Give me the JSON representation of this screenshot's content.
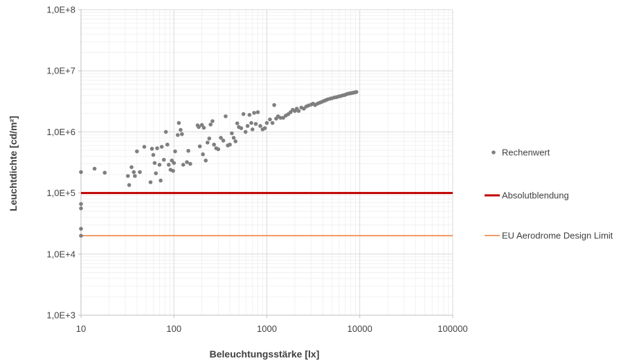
{
  "chart_data": {
    "type": "scatter",
    "xlabel": "Beleuchtungsstärke [lx]",
    "ylabel": "Leuchtdichte [cd/m²]",
    "x_scale": "log",
    "y_scale": "log",
    "xlim": [
      10,
      100000
    ],
    "ylim": [
      1000,
      100000000
    ],
    "x_ticks": [
      10,
      100,
      1000,
      10000,
      100000
    ],
    "x_tick_labels": [
      "10",
      "100",
      "1000",
      "10000",
      "100000"
    ],
    "y_ticks": [
      1000,
      10000,
      100000,
      1000000,
      10000000,
      100000000
    ],
    "y_tick_labels": [
      "1,0E+3",
      "1,0E+4",
      "1,0E+5",
      "1,0E+6",
      "1,0E+7",
      "1,0E+8"
    ],
    "grid": true,
    "minor_grid": true,
    "legend_position": "right",
    "series": [
      {
        "name": "Rechenwert",
        "kind": "scatter",
        "color": "#7f7f7f",
        "points": [
          [
            10,
            220000
          ],
          [
            10,
            66000
          ],
          [
            10,
            56000
          ],
          [
            10,
            26000
          ],
          [
            10,
            20000
          ],
          [
            14,
            250000
          ],
          [
            18,
            215000
          ],
          [
            32,
            190000
          ],
          [
            33,
            135000
          ],
          [
            35,
            265000
          ],
          [
            37,
            220000
          ],
          [
            38,
            190000
          ],
          [
            40,
            480000
          ],
          [
            43,
            220000
          ],
          [
            48,
            570000
          ],
          [
            56,
            150000
          ],
          [
            58,
            530000
          ],
          [
            60,
            420000
          ],
          [
            62,
            310000
          ],
          [
            64,
            210000
          ],
          [
            66,
            540000
          ],
          [
            70,
            290000
          ],
          [
            72,
            160000
          ],
          [
            74,
            570000
          ],
          [
            78,
            350000
          ],
          [
            82,
            1000000
          ],
          [
            85,
            620000
          ],
          [
            88,
            290000
          ],
          [
            92,
            240000
          ],
          [
            95,
            340000
          ],
          [
            98,
            230000
          ],
          [
            100,
            310000
          ],
          [
            103,
            480000
          ],
          [
            110,
            890000
          ],
          [
            113,
            1400000
          ],
          [
            118,
            1080000
          ],
          [
            122,
            920000
          ],
          [
            126,
            290000
          ],
          [
            138,
            320000
          ],
          [
            143,
            490000
          ],
          [
            150,
            300000
          ],
          [
            180,
            1280000
          ],
          [
            185,
            1200000
          ],
          [
            190,
            580000
          ],
          [
            200,
            1300000
          ],
          [
            205,
            430000
          ],
          [
            210,
            1170000
          ],
          [
            220,
            340000
          ],
          [
            230,
            670000
          ],
          [
            240,
            780000
          ],
          [
            248,
            1320000
          ],
          [
            260,
            1500000
          ],
          [
            270,
            620000
          ],
          [
            285,
            540000
          ],
          [
            300,
            520000
          ],
          [
            320,
            800000
          ],
          [
            340,
            720000
          ],
          [
            360,
            1800000
          ],
          [
            380,
            600000
          ],
          [
            400,
            620000
          ],
          [
            420,
            950000
          ],
          [
            440,
            800000
          ],
          [
            460,
            700000
          ],
          [
            480,
            1380000
          ],
          [
            500,
            1200000
          ],
          [
            530,
            1150000
          ],
          [
            560,
            1960000
          ],
          [
            590,
            1000000
          ],
          [
            620,
            1250000
          ],
          [
            650,
            1900000
          ],
          [
            680,
            1400000
          ],
          [
            700,
            1100000
          ],
          [
            730,
            2050000
          ],
          [
            760,
            1350000
          ],
          [
            800,
            2100000
          ],
          [
            850,
            1250000
          ],
          [
            900,
            1100000
          ],
          [
            950,
            1150000
          ],
          [
            1000,
            1400000
          ],
          [
            1080,
            1600000
          ],
          [
            1150,
            1400000
          ],
          [
            1200,
            2750000
          ],
          [
            1260,
            1650000
          ],
          [
            1320,
            1800000
          ],
          [
            1400,
            1700000
          ],
          [
            1500,
            1700000
          ],
          [
            1600,
            1850000
          ],
          [
            1700,
            1950000
          ],
          [
            1800,
            2100000
          ],
          [
            1900,
            2300000
          ],
          [
            2000,
            2200000
          ],
          [
            2100,
            2400000
          ],
          [
            2200,
            2200000
          ],
          [
            2350,
            2500000
          ],
          [
            2500,
            2400000
          ],
          [
            2650,
            2600000
          ],
          [
            2800,
            2700000
          ],
          [
            3000,
            2800000
          ],
          [
            3150,
            2900000
          ],
          [
            3300,
            2750000
          ],
          [
            3500,
            2900000
          ],
          [
            3700,
            3000000
          ],
          [
            3900,
            3100000
          ],
          [
            4100,
            3200000
          ],
          [
            4300,
            3300000
          ],
          [
            4500,
            3400000
          ],
          [
            4800,
            3500000
          ],
          [
            5000,
            3550000
          ],
          [
            5300,
            3650000
          ],
          [
            5600,
            3700000
          ],
          [
            5900,
            3800000
          ],
          [
            6200,
            3850000
          ],
          [
            6500,
            3950000
          ],
          [
            6800,
            4000000
          ],
          [
            7100,
            4100000
          ],
          [
            7400,
            4200000
          ],
          [
            7700,
            4250000
          ],
          [
            8000,
            4300000
          ],
          [
            8300,
            4350000
          ],
          [
            8600,
            4400000
          ],
          [
            8900,
            4450000
          ],
          [
            9200,
            4500000
          ]
        ]
      },
      {
        "name": "Absolutblendung",
        "kind": "hline",
        "y": 100000,
        "color": "#c00000"
      },
      {
        "name": "EU Aerodrome Design Limit",
        "kind": "hline",
        "y": 20000,
        "color": "#ed7d31"
      }
    ]
  }
}
